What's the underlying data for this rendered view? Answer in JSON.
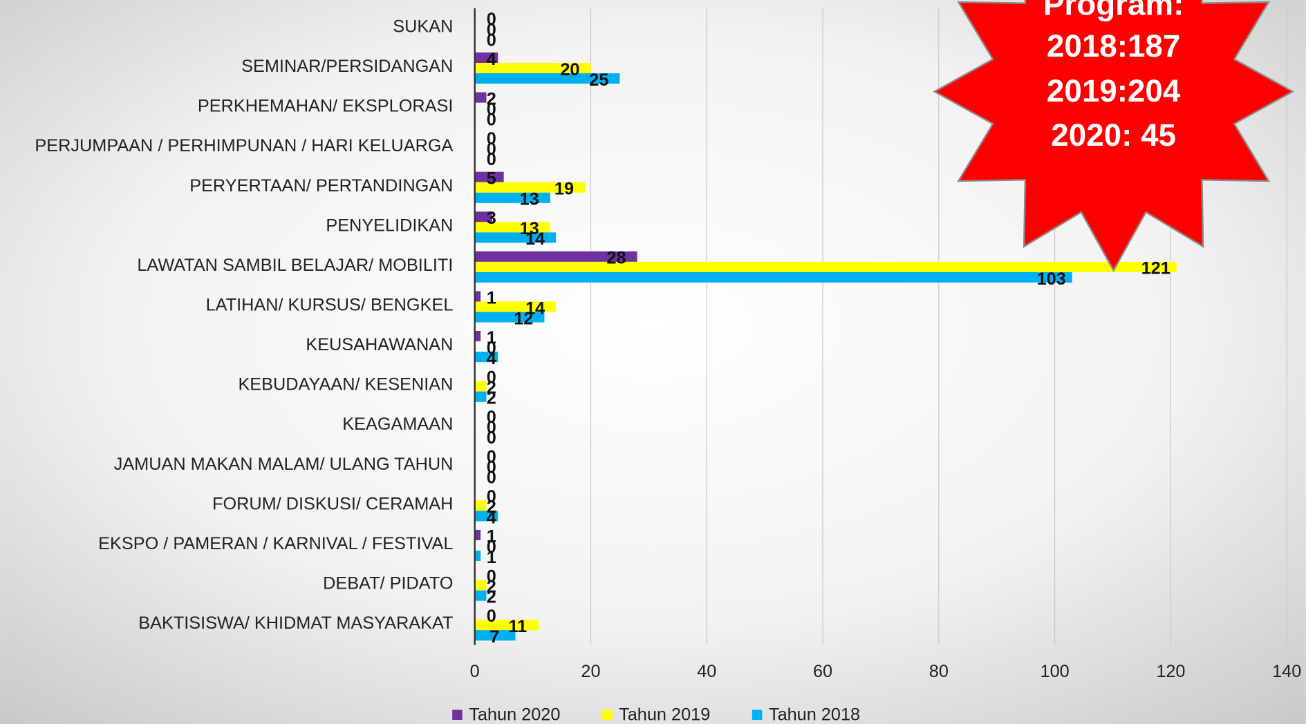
{
  "chart_data": {
    "type": "bar",
    "orientation": "horizontal",
    "categories": [
      "SUKAN",
      "SEMINAR/PERSIDANGAN",
      "PERKHEMAHAN/ EKSPLORASI",
      "PERJUMPAAN / PERHIMPUNAN / HARI KELUARGA",
      "PERYERTAAN/ PERTANDINGAN",
      "PENYELIDIKAN",
      "LAWATAN SAMBIL BELAJAR/ MOBILITI",
      "LATIHAN/ KURSUS/ BENGKEL",
      "KEUSAHAWANAN",
      "KEBUDAYAAN/ KESENIAN",
      "KEAGAMAAN",
      "JAMUAN MAKAN MALAM/ ULANG TAHUN",
      "FORUM/ DISKUSI/ CERAMAH",
      "EKSPO / PAMERAN / KARNIVAL / FESTIVAL",
      "DEBAT/ PIDATO",
      "BAKTISISWA/ KHIDMAT MASYARAKAT"
    ],
    "series": [
      {
        "name": "Tahun 2020",
        "color": "#7030a0",
        "values": [
          0,
          4,
          2,
          0,
          5,
          3,
          28,
          1,
          1,
          0,
          0,
          0,
          0,
          1,
          0,
          0
        ]
      },
      {
        "name": "Tahun 2019",
        "color": "#ffff00",
        "values": [
          0,
          20,
          0,
          0,
          19,
          13,
          121,
          14,
          0,
          2,
          0,
          0,
          2,
          0,
          2,
          11
        ]
      },
      {
        "name": "Tahun 2018",
        "color": "#00b0f0",
        "values": [
          0,
          25,
          0,
          0,
          13,
          14,
          103,
          12,
          4,
          2,
          0,
          0,
          4,
          1,
          2,
          7
        ]
      }
    ],
    "xlim": [
      0,
      140
    ],
    "xticks": [
      0,
      20,
      40,
      60,
      80,
      100,
      120,
      140
    ],
    "grid": true,
    "legend": "bottom",
    "annotation": [
      "Program:",
      "2018:187",
      "2019:204",
      "2020: 45"
    ]
  }
}
